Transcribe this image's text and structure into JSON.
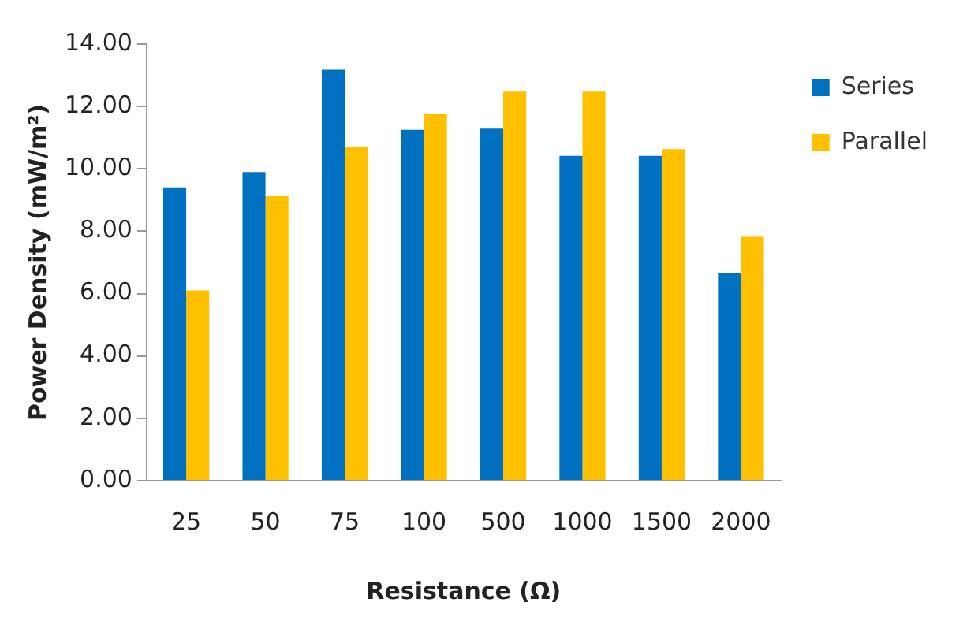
{
  "chart_data": {
    "type": "bar",
    "xlabel": "Resistance (Ω)",
    "ylabel": "Power Density (mW/m²)",
    "categories": [
      "25",
      "50",
      "75",
      "100",
      "500",
      "1000",
      "1500",
      "2000"
    ],
    "series": [
      {
        "name": "Series",
        "color": "#0070c0",
        "values": [
          9.41,
          9.9,
          13.18,
          11.25,
          11.29,
          10.42,
          10.42,
          6.65
        ]
      },
      {
        "name": "Parallel",
        "color": "#ffc000",
        "values": [
          6.1,
          9.12,
          10.71,
          11.75,
          12.48,
          12.48,
          10.63,
          7.82
        ]
      }
    ],
    "ylim": [
      0,
      14
    ],
    "yticks": [
      {
        "value": 0,
        "label": "0.00"
      },
      {
        "value": 2,
        "label": "2.00"
      },
      {
        "value": 4,
        "label": "4.00"
      },
      {
        "value": 6,
        "label": "6.00"
      },
      {
        "value": 8,
        "label": "8.00"
      },
      {
        "value": 10,
        "label": "10.00"
      },
      {
        "value": 12,
        "label": "12.00"
      },
      {
        "value": 14,
        "label": "14.00"
      }
    ],
    "grid": false,
    "legend": "top right"
  }
}
